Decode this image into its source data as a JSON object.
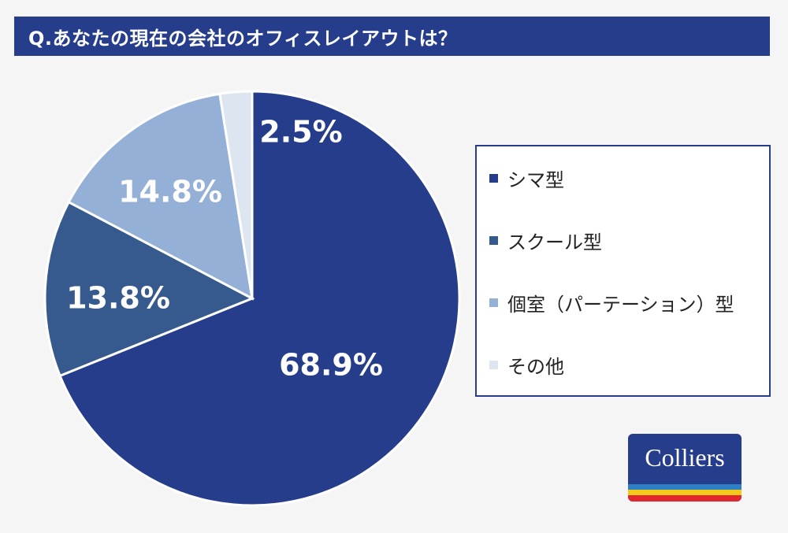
{
  "title": "Q.あなたの現在の会社のオフィスレイアウトは？",
  "chart_data": {
    "type": "pie",
    "slices": [
      {
        "name": "シマ型",
        "value": 68.9,
        "label": "68.9%",
        "color": "#263d8b"
      },
      {
        "name": "スクール型",
        "value": 13.8,
        "label": "13.8%",
        "color": "#36598e"
      },
      {
        "name": "個室（パーテーション）型",
        "value": 14.8,
        "label": "14.8%",
        "color": "#94b0d6"
      },
      {
        "name": "その他",
        "value": 2.5,
        "label": "2.5%",
        "color": "#dde5f1"
      }
    ],
    "start": "top (12 o'clock), clockwise",
    "legend_position": "right"
  },
  "logo": {
    "text": "Colliers",
    "colors": {
      "background": "#263d8b",
      "stripe_top": "#2f7fc4",
      "stripe_mid": "#f3c91a",
      "stripe_bottom": "#e1262d"
    }
  },
  "colors": {
    "title_bar": "#263d8b",
    "background": "#f5f5f5"
  }
}
